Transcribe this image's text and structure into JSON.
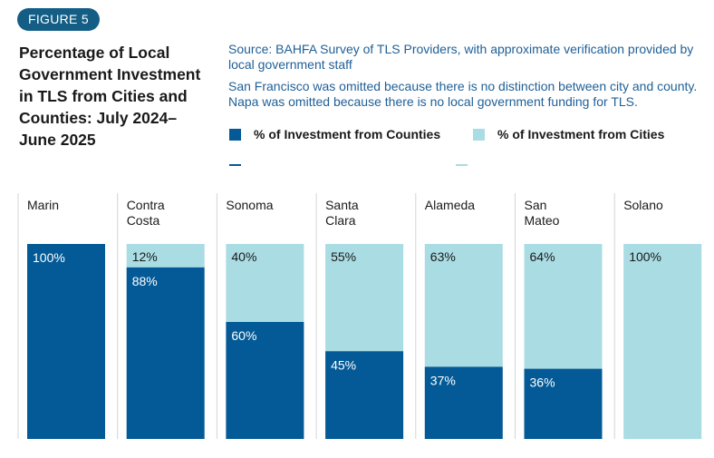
{
  "figure_label": "FIGURE 5",
  "title": "Percentage of Local Government Investment in TLS from Cities and Counties: July 2024– June 2025",
  "source": "Source: BAHFA Survey of TLS Providers, with approximate verification provided by local government staff",
  "note": "San Francisco was omitted because there is no distinction between city and county. Napa was omitted because there is no local government funding for TLS.",
  "colors": {
    "counties": "#045a96",
    "cities": "#a9dce3",
    "badge": "#145e86",
    "text_blue": "#1f5f97"
  },
  "chart_data": {
    "type": "bar",
    "stacked": true,
    "categories": [
      [
        "Marin"
      ],
      [
        "Contra",
        "Costa"
      ],
      [
        "Sonoma"
      ],
      [
        "Santa",
        "Clara"
      ],
      [
        "Alameda"
      ],
      [
        "San",
        "Mateo"
      ],
      [
        "Solano"
      ]
    ],
    "series": [
      {
        "name": "% of Investment from Counties",
        "values": [
          100,
          88,
          60,
          45,
          37,
          36,
          0
        ],
        "labels": [
          "100%",
          "88%",
          "60%",
          "45%",
          "37%",
          "36%",
          ""
        ]
      },
      {
        "name": "% of Investment from Cities",
        "values": [
          0,
          12,
          40,
          55,
          63,
          64,
          100
        ],
        "labels": [
          "",
          "12%",
          "40%",
          "55%",
          "63%",
          "64%",
          "100%"
        ]
      }
    ],
    "ylim": [
      0,
      100
    ],
    "legend": "top",
    "title": "Percentage of Local Government Investment in TLS from Cities and Counties: July 2024– June 2025",
    "xlabel": "",
    "ylabel": ""
  }
}
